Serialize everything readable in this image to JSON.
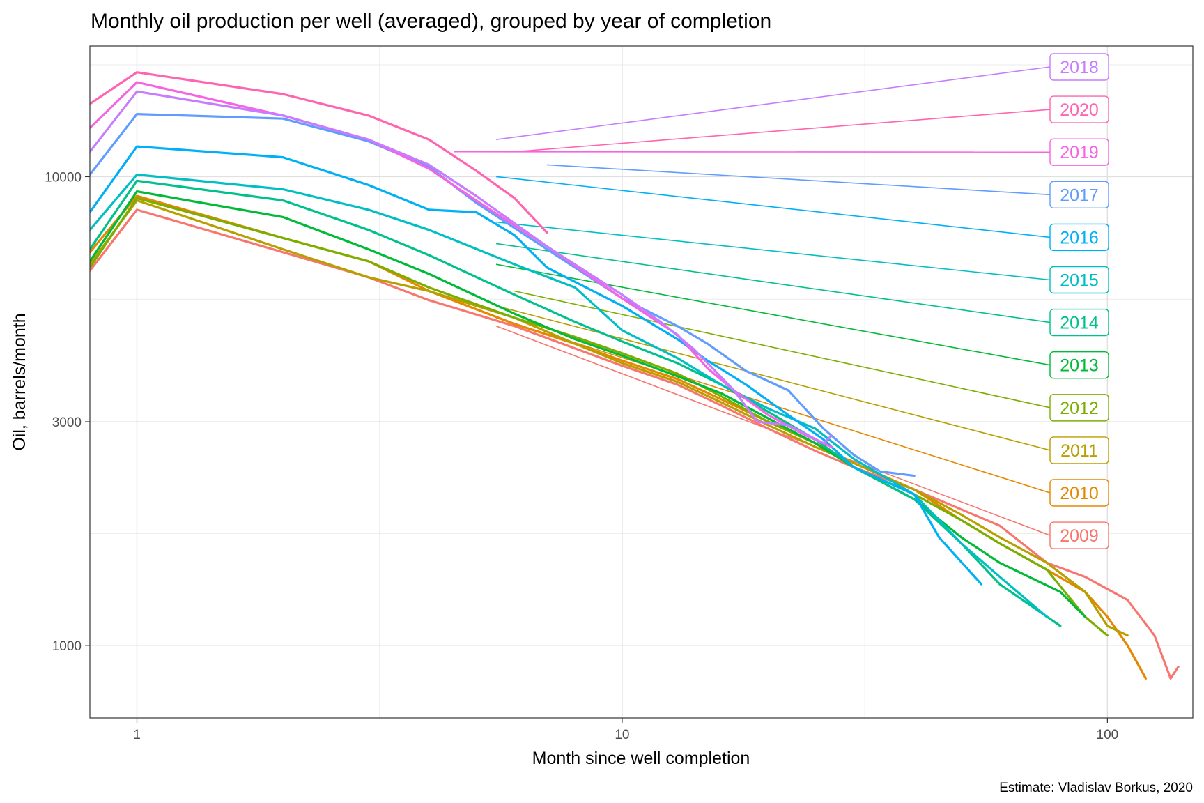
{
  "chart_data": {
    "type": "line",
    "title": "Monthly oil production per well (averaged), grouped by year of completion",
    "xlabel": "Month since well completion",
    "ylabel": "Oil, barrels/month",
    "caption": "Estimate: Vladislav Borkus, 2020",
    "x_scale": "log10",
    "y_scale": "log10",
    "xlim": [
      0.8,
      150
    ],
    "ylim": [
      700,
      19000
    ],
    "x_ticks": [
      1,
      10,
      100
    ],
    "x_tick_labels": [
      "1",
      "10",
      "100"
    ],
    "y_ticks": [
      1000,
      3000,
      10000
    ],
    "y_tick_labels": [
      "1000",
      "3000",
      "10000"
    ],
    "grid": true,
    "legend": "direct labels at right",
    "series": [
      {
        "name": "2018",
        "color": "#C77CFF",
        "points": [
          [
            0.8,
            11300
          ],
          [
            1,
            15200
          ],
          [
            2,
            13500
          ],
          [
            3,
            12000
          ],
          [
            4,
            10600
          ],
          [
            5,
            9100
          ],
          [
            7,
            7100
          ],
          [
            10,
            5600
          ],
          [
            12,
            4900
          ],
          [
            14,
            4300
          ],
          [
            15,
            4000
          ],
          [
            17,
            3500
          ],
          [
            19,
            3000
          ],
          [
            22,
            2950
          ],
          [
            26,
            2700
          ],
          [
            27,
            2800
          ]
        ]
      },
      {
        "name": "2020",
        "color": "#FF64B0",
        "points": [
          [
            0.8,
            14300
          ],
          [
            1,
            16700
          ],
          [
            2,
            15000
          ],
          [
            3,
            13500
          ],
          [
            4,
            12000
          ],
          [
            5,
            10300
          ],
          [
            6,
            9000
          ],
          [
            7,
            7600
          ]
        ]
      },
      {
        "name": "2019",
        "color": "#F564E3",
        "points": [
          [
            0.8,
            12700
          ],
          [
            1,
            15900
          ],
          [
            2,
            13500
          ],
          [
            3,
            12000
          ],
          [
            4,
            10400
          ],
          [
            5,
            8900
          ],
          [
            7,
            7100
          ],
          [
            10,
            5500
          ],
          [
            13,
            4600
          ],
          [
            15,
            3900
          ],
          [
            17,
            3500
          ],
          [
            20,
            3100
          ],
          [
            24,
            2800
          ],
          [
            27,
            2650
          ]
        ]
      },
      {
        "name": "2017",
        "color": "#619CFF",
        "points": [
          [
            0.8,
            10100
          ],
          [
            1,
            13600
          ],
          [
            2,
            13300
          ],
          [
            3,
            11900
          ],
          [
            4,
            10500
          ],
          [
            5,
            8800
          ],
          [
            7,
            7000
          ],
          [
            10,
            5500
          ],
          [
            13,
            4800
          ],
          [
            15,
            4400
          ],
          [
            18,
            3850
          ],
          [
            22,
            3500
          ],
          [
            26,
            2900
          ],
          [
            30,
            2550
          ],
          [
            34,
            2350
          ],
          [
            40,
            2300
          ]
        ]
      },
      {
        "name": "2016",
        "color": "#00B0F6",
        "points": [
          [
            0.8,
            8400
          ],
          [
            1,
            11600
          ],
          [
            2,
            11000
          ],
          [
            3,
            9600
          ],
          [
            4,
            8500
          ],
          [
            5,
            8400
          ],
          [
            6,
            7500
          ],
          [
            7,
            6400
          ],
          [
            10,
            5300
          ],
          [
            13,
            4500
          ],
          [
            15,
            4050
          ],
          [
            18,
            3600
          ],
          [
            22,
            3100
          ],
          [
            26,
            2750
          ],
          [
            30,
            2400
          ],
          [
            40,
            2100
          ],
          [
            45,
            1700
          ],
          [
            55,
            1350
          ]
        ]
      },
      {
        "name": "2015",
        "color": "#00BFC4",
        "points": [
          [
            0.8,
            7700
          ],
          [
            1,
            10100
          ],
          [
            2,
            9400
          ],
          [
            3,
            8500
          ],
          [
            4,
            7700
          ],
          [
            6,
            6500
          ],
          [
            8,
            5800
          ],
          [
            10,
            4700
          ],
          [
            13,
            4100
          ],
          [
            16,
            3600
          ],
          [
            20,
            3200
          ],
          [
            25,
            2900
          ],
          [
            30,
            2500
          ],
          [
            40,
            2100
          ],
          [
            50,
            1650
          ],
          [
            60,
            1400
          ],
          [
            75,
            1150
          ]
        ]
      },
      {
        "name": "2014",
        "color": "#00C08B",
        "points": [
          [
            0.8,
            7000
          ],
          [
            1,
            9800
          ],
          [
            2,
            8900
          ],
          [
            3,
            7700
          ],
          [
            4,
            6800
          ],
          [
            6,
            5600
          ],
          [
            8,
            4900
          ],
          [
            10,
            4450
          ],
          [
            13,
            4000
          ],
          [
            16,
            3600
          ],
          [
            20,
            3150
          ],
          [
            25,
            2750
          ],
          [
            30,
            2400
          ],
          [
            40,
            2050
          ],
          [
            50,
            1650
          ],
          [
            60,
            1350
          ],
          [
            80,
            1100
          ]
        ]
      },
      {
        "name": "2013",
        "color": "#00BA38",
        "points": [
          [
            0.8,
            6600
          ],
          [
            1,
            9300
          ],
          [
            2,
            8200
          ],
          [
            3,
            7000
          ],
          [
            4,
            6200
          ],
          [
            6,
            5100
          ],
          [
            8,
            4500
          ],
          [
            10,
            4150
          ],
          [
            13,
            3750
          ],
          [
            16,
            3450
          ],
          [
            20,
            3050
          ],
          [
            25,
            2700
          ],
          [
            30,
            2400
          ],
          [
            40,
            2050
          ],
          [
            50,
            1700
          ],
          [
            60,
            1500
          ],
          [
            80,
            1300
          ],
          [
            90,
            1150
          ]
        ]
      },
      {
        "name": "2012",
        "color": "#7CAE00",
        "points": [
          [
            0.8,
            6400
          ],
          [
            1,
            9000
          ],
          [
            2,
            7400
          ],
          [
            3,
            6600
          ],
          [
            4,
            5800
          ],
          [
            6,
            5000
          ],
          [
            8,
            4550
          ],
          [
            10,
            4200
          ],
          [
            13,
            3800
          ],
          [
            16,
            3400
          ],
          [
            20,
            3000
          ],
          [
            25,
            2700
          ],
          [
            30,
            2400
          ],
          [
            40,
            2100
          ],
          [
            50,
            1850
          ],
          [
            60,
            1650
          ],
          [
            75,
            1450
          ],
          [
            90,
            1150
          ],
          [
            100,
            1050
          ]
        ]
      },
      {
        "name": "2011",
        "color": "#B79F00",
        "points": [
          [
            0.8,
            6500
          ],
          [
            1,
            8900
          ],
          [
            2,
            7000
          ],
          [
            3,
            6100
          ],
          [
            4,
            5700
          ],
          [
            6,
            5000
          ],
          [
            8,
            4400
          ],
          [
            10,
            4000
          ],
          [
            13,
            3650
          ],
          [
            16,
            3300
          ],
          [
            20,
            2950
          ],
          [
            25,
            2650
          ],
          [
            30,
            2450
          ],
          [
            40,
            2150
          ],
          [
            50,
            1900
          ],
          [
            60,
            1700
          ],
          [
            75,
            1500
          ],
          [
            90,
            1300
          ],
          [
            100,
            1100
          ],
          [
            110,
            1050
          ]
        ]
      },
      {
        "name": "2010",
        "color": "#E58700",
        "points": [
          [
            0.8,
            6900
          ],
          [
            1,
            9100
          ],
          [
            2,
            7400
          ],
          [
            3,
            6600
          ],
          [
            4,
            5700
          ],
          [
            6,
            4850
          ],
          [
            8,
            4400
          ],
          [
            10,
            4050
          ],
          [
            13,
            3700
          ],
          [
            16,
            3350
          ],
          [
            20,
            3000
          ],
          [
            25,
            2700
          ],
          [
            30,
            2450
          ],
          [
            40,
            2150
          ],
          [
            50,
            1850
          ],
          [
            60,
            1650
          ],
          [
            75,
            1450
          ],
          [
            90,
            1300
          ],
          [
            100,
            1150
          ],
          [
            110,
            1000
          ],
          [
            120,
            850
          ]
        ]
      },
      {
        "name": "2009",
        "color": "#F8766D",
        "points": [
          [
            0.8,
            6300
          ],
          [
            1,
            8500
          ],
          [
            2,
            6900
          ],
          [
            3,
            6100
          ],
          [
            4,
            5450
          ],
          [
            6,
            4800
          ],
          [
            8,
            4300
          ],
          [
            10,
            3950
          ],
          [
            13,
            3600
          ],
          [
            16,
            3250
          ],
          [
            20,
            2900
          ],
          [
            25,
            2600
          ],
          [
            30,
            2400
          ],
          [
            40,
            2150
          ],
          [
            50,
            1950
          ],
          [
            60,
            1800
          ],
          [
            75,
            1500
          ],
          [
            90,
            1400
          ],
          [
            110,
            1250
          ],
          [
            125,
            1050
          ],
          [
            135,
            850
          ],
          [
            140,
            900
          ]
        ]
      }
    ],
    "labels": [
      {
        "text": "2018",
        "color": "#C77CFF",
        "anchor_x": 5.5,
        "anchor_y": 12000
      },
      {
        "text": "2020",
        "color": "#FF64B0",
        "anchor_x": 6.0,
        "anchor_y": 11300
      },
      {
        "text": "2019",
        "color": "#F564E3",
        "anchor_x": 4.5,
        "anchor_y": 11300
      },
      {
        "text": "2017",
        "color": "#619CFF",
        "anchor_x": 7.0,
        "anchor_y": 10600
      },
      {
        "text": "2016",
        "color": "#00B0F6",
        "anchor_x": 5.5,
        "anchor_y": 10000
      },
      {
        "text": "2015",
        "color": "#00BFC4",
        "anchor_x": 5.5,
        "anchor_y": 8000
      },
      {
        "text": "2014",
        "color": "#00C08B",
        "anchor_x": 5.5,
        "anchor_y": 7200
      },
      {
        "text": "2013",
        "color": "#00BA38",
        "anchor_x": 5.5,
        "anchor_y": 6500
      },
      {
        "text": "2012",
        "color": "#7CAE00",
        "anchor_x": 6.0,
        "anchor_y": 5700
      },
      {
        "text": "2011",
        "color": "#B79F00",
        "anchor_x": 5.5,
        "anchor_y": 5300
      },
      {
        "text": "2010",
        "color": "#E58700",
        "anchor_x": 5.5,
        "anchor_y": 5000
      },
      {
        "text": "2009",
        "color": "#F8766D",
        "anchor_x": 5.5,
        "anchor_y": 4800
      }
    ]
  }
}
